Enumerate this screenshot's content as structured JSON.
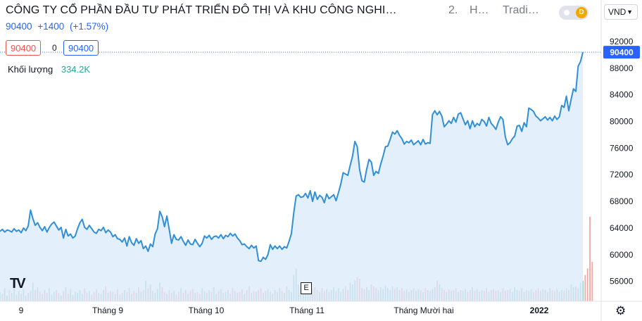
{
  "header": {
    "title": "CÔNG TY CỔ PHẦN ĐẦU TƯ PHÁT TRIỂN ĐÔ THỊ VÀ KHU CÔNG NGHI…",
    "interval": "2.",
    "source_short": "H…",
    "provider_short": "Tradi…",
    "price": "90400",
    "change": "+1400",
    "change_pct": "(+1.57%)",
    "sell_price": "90400",
    "spread": "0",
    "buy_price": "90400",
    "volume_label": "Khối lượng",
    "volume_value": "334.2K",
    "mode_letter": "D",
    "currency": "VND",
    "e_marker": "E"
  },
  "colors": {
    "line": "#2f8fd8",
    "area": "#dbeafb",
    "vol_up": "#8fcfc4",
    "vol_down": "#f1a7a6",
    "last_price_badge": "#2962ff"
  },
  "chart_data": {
    "type": "area",
    "y_axis": {
      "ticks": [
        56000,
        60000,
        64000,
        68000,
        72000,
        76000,
        80000,
        84000,
        88000,
        92000
      ],
      "range": [
        53000,
        94000
      ],
      "last_price_label": "90400"
    },
    "x_axis": {
      "tick_labels": [
        "9",
        "Tháng 9",
        "Tháng 10",
        "Tháng 11",
        "Tháng Mười hai",
        "2022"
      ]
    },
    "series": [
      {
        "values": [
          63500,
          63800,
          63400,
          63700,
          63600,
          63400,
          63900,
          63500,
          63700,
          63300,
          64000,
          63600,
          64300,
          66700,
          65400,
          64400,
          64800,
          64100,
          63600,
          64200,
          63400,
          64100,
          64600,
          64900,
          64300,
          63700,
          64100,
          62500,
          63800,
          62800,
          63100,
          62500,
          62800,
          63900,
          64800,
          65300,
          64100,
          63800,
          64400,
          63900,
          63400,
          63200,
          63800,
          63600,
          64100,
          63300,
          63700,
          63400,
          62700,
          63000,
          62400,
          62300,
          61900,
          62500,
          61300,
          62700,
          61800,
          61400,
          62400,
          61700,
          62100,
          60900,
          61300,
          60500,
          61600,
          61200,
          63100,
          63900,
          66500,
          65700,
          64200,
          65800,
          63800,
          61700,
          63000,
          62300,
          62200,
          62700,
          62000,
          61400,
          62200,
          61600,
          61500,
          62300,
          61700,
          61200,
          61700,
          62800,
          62500,
          62900,
          62300,
          62700,
          62800,
          62500,
          63000,
          62400,
          62900,
          62700,
          63200,
          62800,
          63100,
          62500,
          62100,
          61500,
          61600,
          61200,
          60900,
          61400,
          61000,
          61300,
          59100,
          59000,
          59600,
          59300,
          60000,
          61500,
          60800,
          61300,
          60900,
          61300,
          60800,
          61200,
          61000,
          62000,
          63200,
          66300,
          68800,
          69000,
          68600,
          68700,
          69200,
          68500,
          69600,
          68000,
          69400,
          68300,
          68900,
          68600,
          67800,
          69100,
          68400,
          68700,
          69000,
          68100,
          69300,
          70600,
          72300,
          72100,
          71900,
          73400,
          74800,
          77000,
          76200,
          72800,
          71100,
          70900,
          72800,
          74300,
          73900,
          71900,
          72500,
          72200,
          73600,
          74800,
          76200,
          76300,
          77300,
          78400,
          78100,
          78600,
          77900,
          77400,
          76600,
          77000,
          76800,
          77200,
          76500,
          76800,
          77100,
          76500,
          77300,
          76600,
          76800,
          76700,
          81000,
          81600,
          81000,
          81500,
          80800,
          79200,
          79600,
          80100,
          79700,
          80600,
          79900,
          81100,
          81300,
          80400,
          79500,
          80100,
          78900,
          80100,
          79200,
          79700,
          79400,
          80300,
          80000,
          79300,
          80600,
          79700,
          79300,
          78800,
          79900,
          80700,
          80300,
          77700,
          76500,
          76800,
          77400,
          77800,
          79300,
          79400,
          78500,
          79800,
          79200,
          82000,
          81800,
          81500,
          80800,
          80500,
          80100,
          80400,
          80700,
          80200,
          80600,
          80100,
          80800,
          80300,
          80700,
          82400,
          82100,
          83800,
          81600,
          83300,
          84900,
          84500,
          88300,
          89000,
          90400
        ]
      }
    ],
    "volume": {
      "values": [
        10,
        8,
        14,
        6,
        12,
        9,
        18,
        7,
        11,
        8,
        13,
        6,
        9,
        11,
        20,
        12,
        15,
        10,
        8,
        12,
        9,
        14,
        7,
        10,
        12,
        9,
        6,
        11,
        15,
        8,
        13,
        7,
        10,
        9,
        12,
        8,
        14,
        9,
        11,
        7,
        10,
        13,
        9,
        8,
        12,
        16,
        9,
        11,
        10,
        8,
        13,
        7,
        9,
        12,
        10,
        14,
        8,
        11,
        9,
        15,
        10,
        12,
        22,
        14,
        18,
        11,
        9,
        13,
        20,
        15,
        10,
        8,
        12,
        9,
        11,
        7,
        10,
        14,
        9,
        12,
        8,
        11,
        13,
        9,
        10,
        8,
        14,
        11,
        9,
        12,
        10,
        15,
        8,
        11,
        13,
        9,
        10,
        12,
        8,
        14,
        11,
        9,
        10,
        13,
        8,
        12,
        16,
        9,
        11,
        10,
        12,
        14,
        9,
        11,
        13,
        10,
        8,
        12,
        10,
        14,
        11,
        9,
        16,
        12,
        10,
        28,
        35,
        18,
        14,
        12,
        10,
        16,
        11,
        13,
        15,
        12,
        10,
        14,
        11,
        13,
        10,
        12,
        15,
        11,
        14,
        10,
        13,
        16,
        12,
        20,
        18,
        22,
        26,
        24,
        14,
        13,
        15,
        12,
        18,
        16,
        14,
        12,
        15,
        13,
        17,
        14,
        12,
        16,
        13,
        15,
        12,
        14,
        11,
        13,
        10,
        12,
        14,
        11,
        13,
        12,
        10,
        14,
        12,
        11,
        13,
        15,
        22,
        18,
        14,
        12,
        10,
        13,
        11,
        12,
        14,
        10,
        12,
        11,
        13,
        10,
        12,
        15,
        11,
        13,
        10,
        12,
        11,
        14,
        10,
        12,
        13,
        11,
        12,
        10,
        14,
        11,
        12,
        13,
        10,
        15,
        12,
        11,
        14,
        10,
        12,
        11,
        13,
        10,
        12,
        14,
        11,
        13,
        12,
        10,
        14,
        12,
        11,
        13,
        10,
        12,
        11,
        14,
        12,
        18,
        15,
        16,
        14,
        20,
        22,
        28,
        35,
        90,
        42
      ],
      "up": [
        1,
        0,
        1,
        1,
        0,
        1,
        1,
        0,
        1,
        0,
        1,
        1,
        0,
        1,
        1,
        0,
        1,
        0,
        0,
        1,
        0,
        1,
        1,
        1,
        0,
        0,
        1,
        0,
        1,
        0,
        1,
        0,
        1,
        1,
        1,
        1,
        0,
        0,
        1,
        0,
        0,
        0,
        1,
        0,
        1,
        0,
        1,
        0,
        0,
        1,
        0,
        0,
        0,
        1,
        0,
        1,
        0,
        0,
        1,
        0,
        1,
        0,
        1,
        0,
        1,
        0,
        1,
        1,
        1,
        0,
        0,
        1,
        0,
        0,
        1,
        0,
        0,
        1,
        0,
        0,
        1,
        0,
        0,
        1,
        0,
        0,
        1,
        1,
        0,
        1,
        0,
        1,
        1,
        0,
        1,
        0,
        1,
        0,
        1,
        0,
        1,
        0,
        0,
        0,
        1,
        0,
        0,
        1,
        0,
        1,
        0,
        0,
        1,
        0,
        1,
        1,
        0,
        1,
        0,
        1,
        0,
        1,
        0,
        1,
        1,
        1,
        1,
        1,
        0,
        1,
        1,
        0,
        1,
        0,
        1,
        0,
        1,
        0,
        0,
        1,
        0,
        1,
        1,
        0,
        1,
        1,
        1,
        0,
        0,
        1,
        1,
        1,
        0,
        0,
        0,
        0,
        1,
        1,
        0,
        0,
        1,
        0,
        1,
        1,
        1,
        1,
        1,
        1,
        0,
        1,
        0,
        0,
        0,
        1,
        0,
        1,
        0,
        1,
        1,
        0,
        1,
        0,
        1,
        0,
        1,
        1,
        0,
        1,
        0,
        0,
        1,
        0,
        1,
        0,
        0,
        1,
        0,
        1,
        1,
        0,
        0,
        1,
        0,
        1,
        0,
        1,
        0,
        0,
        1,
        0,
        0,
        0,
        1,
        1,
        0,
        0,
        0,
        1,
        1,
        1,
        1,
        0,
        1,
        1,
        0,
        1,
        1,
        0,
        0,
        0,
        1,
        0,
        1,
        0,
        1,
        0,
        1,
        0,
        1,
        1,
        0,
        1,
        0,
        1,
        1,
        0,
        1,
        1,
        1
      ]
    }
  }
}
